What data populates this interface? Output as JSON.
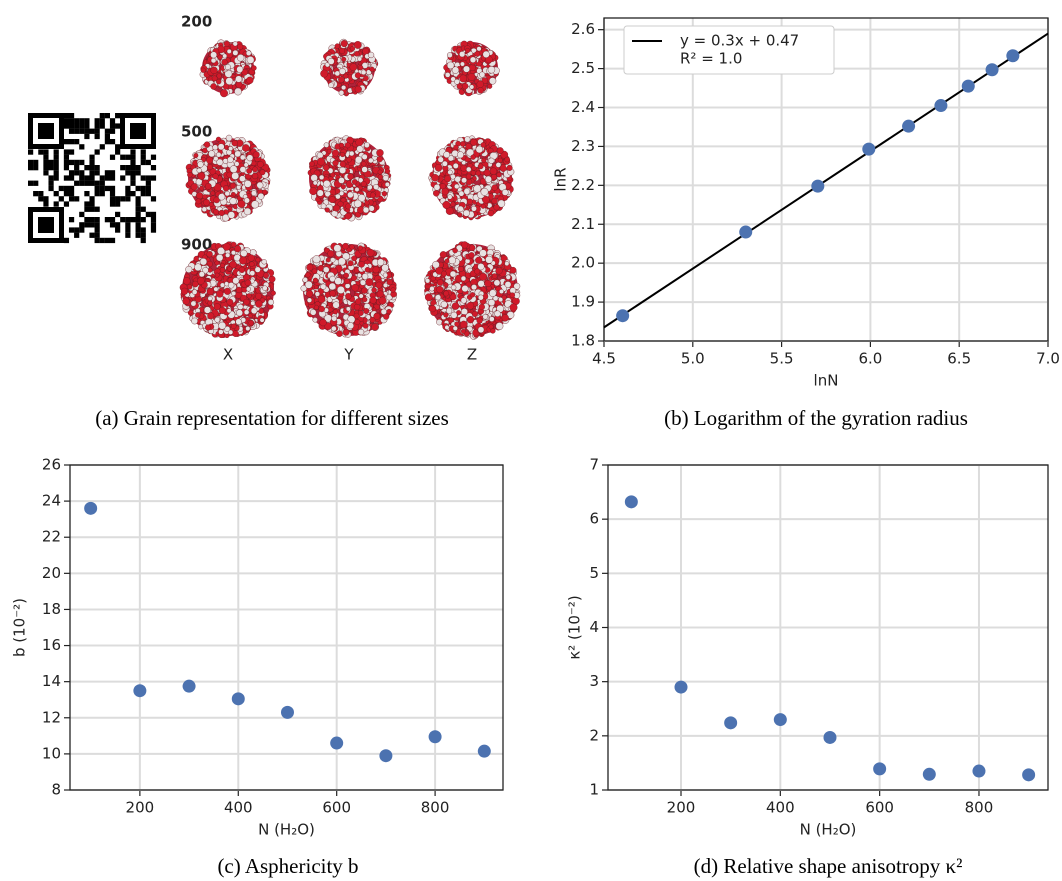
{
  "chart_data": [
    {
      "type": "image",
      "caption": "(a) Grain representation for different sizes",
      "rows": [
        "200",
        "500",
        "900"
      ],
      "columns": [
        "X",
        "Y",
        "Z"
      ]
    },
    {
      "type": "scatter",
      "caption": "(b) Logarithm of the gyration radius",
      "xlabel": "lnN",
      "ylabel": "lnR",
      "x": [
        4.605,
        5.298,
        5.704,
        5.991,
        6.215,
        6.397,
        6.551,
        6.685,
        6.802
      ],
      "values": [
        1.865,
        2.08,
        2.198,
        2.293,
        2.352,
        2.405,
        2.455,
        2.497,
        2.533
      ],
      "color": "#4c72b0",
      "xlim": [
        4.5,
        7.0
      ],
      "ylim": [
        1.8,
        2.63
      ],
      "xticks": [
        4.5,
        {
          "value": 5,
          "label": "5.0"
        },
        5.5,
        {
          "value": 6,
          "label": "6.0"
        },
        6.5,
        {
          "value": 7,
          "label": "7.0"
        }
      ],
      "yticks": [
        1.8,
        1.9,
        {
          "value": 2,
          "label": "2.0"
        },
        2.1,
        2.2,
        2.3,
        2.4,
        2.5,
        2.6
      ],
      "grid": true,
      "fit": {
        "name": "y = 0.3x + 0.47",
        "note": "R² = 1.0",
        "x": [
          4.5,
          7.0
        ],
        "values": [
          1.835,
          2.59
        ],
        "color": "#000000"
      }
    },
    {
      "type": "scatter",
      "caption": "(c) Asphericity b",
      "xlabel": "N (H₂O)",
      "ylabel": "b (10⁻²)",
      "x": [
        100,
        200,
        300,
        400,
        500,
        600,
        700,
        800,
        900
      ],
      "values": [
        23.6,
        13.5,
        13.75,
        13.05,
        12.3,
        10.6,
        9.9,
        10.95,
        10.15
      ],
      "color": "#4c72b0",
      "xlim": [
        58,
        938
      ],
      "ylim": [
        8,
        26
      ],
      "xticks": [
        200,
        400,
        600,
        800
      ],
      "yticks": [
        8,
        10,
        12,
        14,
        16,
        18,
        20,
        22,
        24,
        26
      ],
      "grid": true
    },
    {
      "type": "scatter",
      "caption": "(d) Relative shape anisotropy κ²",
      "xlabel": "N (H₂O)",
      "ylabel": "κ² (10⁻²)",
      "x": [
        100,
        200,
        300,
        400,
        500,
        600,
        700,
        800,
        900
      ],
      "values": [
        6.32,
        2.9,
        2.24,
        2.3,
        1.97,
        1.39,
        1.29,
        1.35,
        1.28
      ],
      "color": "#4c72b0",
      "xlim": [
        53,
        939
      ],
      "ylim": [
        1,
        7
      ],
      "xticks": [
        200,
        400,
        600,
        800
      ],
      "yticks": [
        1,
        2,
        3,
        4,
        5,
        6,
        7
      ],
      "grid": true
    }
  ]
}
